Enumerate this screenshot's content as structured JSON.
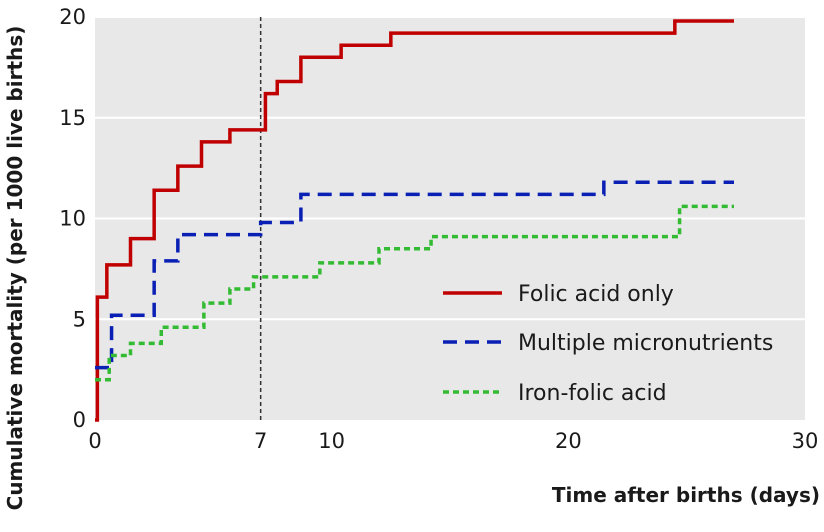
{
  "chart_data": {
    "type": "line",
    "step": true,
    "xlabel": "Time after births (days)",
    "ylabel": "Cumulative mortality (per 1000 live births)",
    "xlim": [
      0,
      30
    ],
    "ylim": [
      0,
      20
    ],
    "xticks": [
      0,
      7,
      10,
      20,
      30
    ],
    "yticks": [
      0,
      5,
      10,
      15,
      20
    ],
    "grid": true,
    "legend_position": "bottom-right",
    "reference_line": {
      "x": 7,
      "style": "dashed"
    },
    "series": [
      {
        "name": "Folic acid only",
        "color": "#c00000",
        "dash": "solid",
        "x": [
          0,
          0.1,
          0.5,
          1.5,
          2.5,
          3.5,
          4.5,
          5.7,
          7.2,
          7.7,
          8.7,
          10.4,
          12.5,
          14.2,
          24.5,
          27
        ],
        "y": [
          0,
          6.1,
          7.7,
          9.0,
          11.4,
          12.6,
          13.8,
          14.4,
          16.2,
          16.8,
          18.0,
          18.6,
          19.2,
          19.2,
          19.8,
          19.8
        ]
      },
      {
        "name": "Multiple micronutrients",
        "color": "#0a1fb4",
        "dash": "long-dash",
        "x": [
          0,
          0.7,
          2.5,
          3.5,
          7.0,
          8.7,
          21.5,
          27
        ],
        "y": [
          2.6,
          5.2,
          7.9,
          9.2,
          9.8,
          11.2,
          11.8,
          11.8
        ]
      },
      {
        "name": "Iron-folic acid",
        "color": "#33bb33",
        "dash": "short-dash",
        "x": [
          0,
          0.6,
          1.5,
          2.8,
          4.6,
          5.7,
          6.7,
          9.5,
          12.0,
          14.2,
          24.7,
          27
        ],
        "y": [
          2.0,
          3.2,
          3.8,
          4.6,
          5.8,
          6.5,
          7.1,
          7.8,
          8.5,
          9.1,
          10.6,
          10.6
        ]
      }
    ]
  }
}
